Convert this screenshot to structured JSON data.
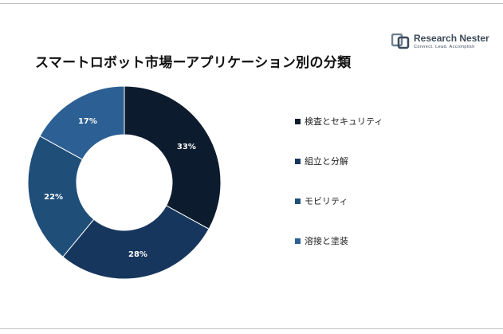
{
  "logo": {
    "name": "Research Nester",
    "tagline": "Connect. Lead. Accomplish"
  },
  "chart_data": {
    "type": "pie",
    "donut": true,
    "title": "スマートロボット市場ーアプリケーション別の分類",
    "categories": [
      "検査とセキュリティ",
      "組立と分解",
      "モビリティ",
      "溶接と塗装"
    ],
    "values": [
      33,
      28,
      22,
      17
    ],
    "data_labels": [
      "33%",
      "28%",
      "22%",
      "17%"
    ],
    "colors": [
      "#0d1b2e",
      "#17365d",
      "#1f4e79",
      "#2c5f93"
    ],
    "legend_position": "right"
  }
}
